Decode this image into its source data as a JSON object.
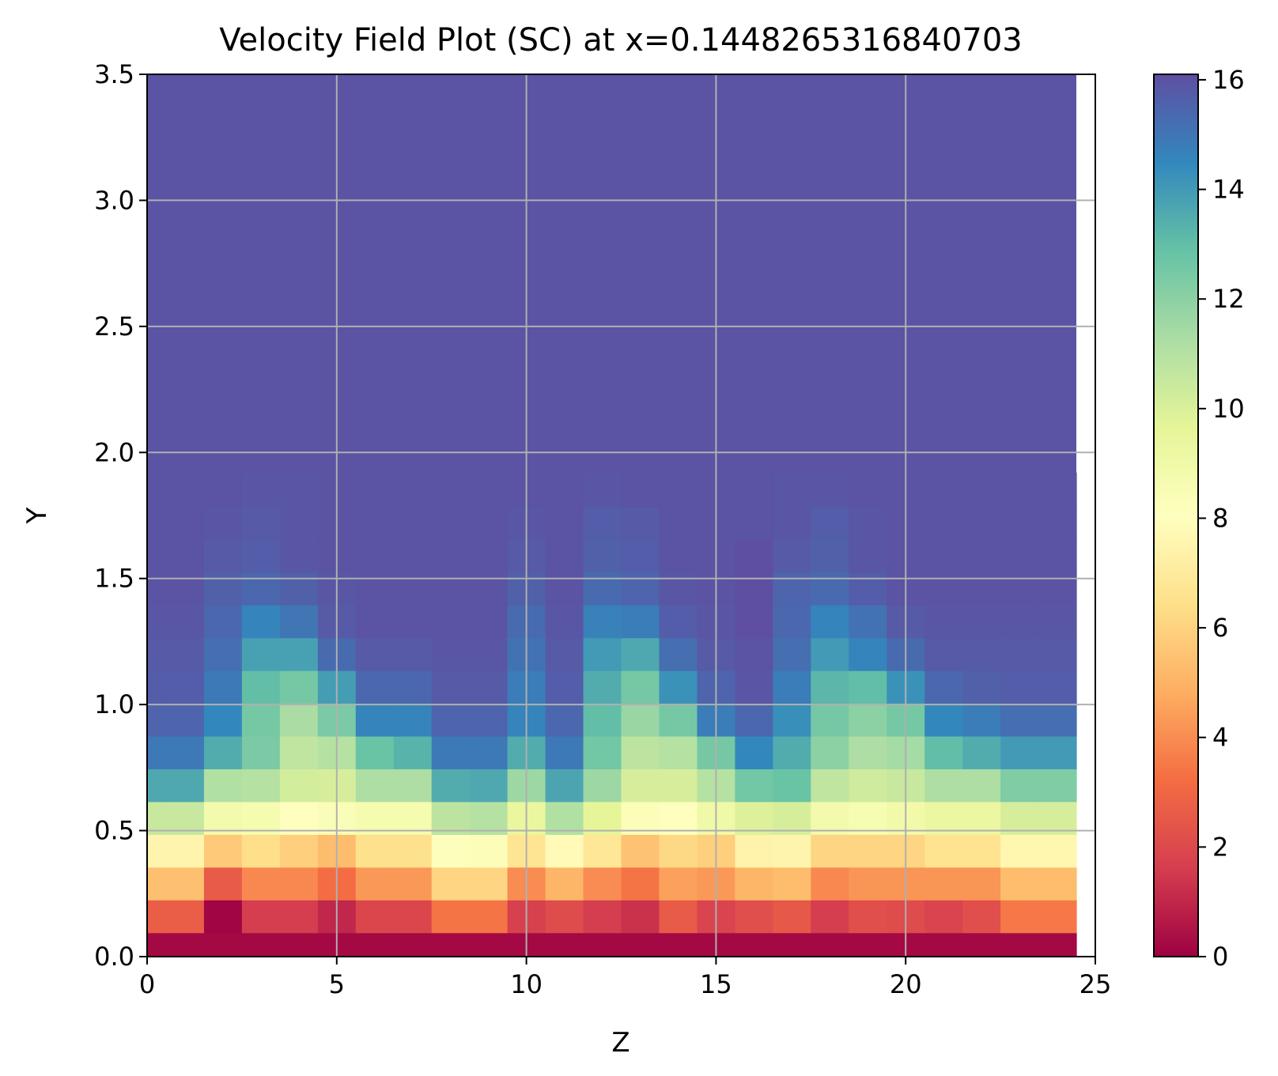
{
  "chart_data": {
    "type": "heatmap",
    "title": "Velocity Field Plot (SC) at x=0.1448265316840703",
    "xlabel": "Z",
    "ylabel": "Y",
    "xlim": [
      0,
      25
    ],
    "ylim": [
      0,
      3.5
    ],
    "x_ticks": [
      "0",
      "5",
      "10",
      "15",
      "20",
      "25"
    ],
    "y_ticks": [
      "0.0",
      "0.5",
      "1.0",
      "1.5",
      "2.0",
      "2.5",
      "3.0",
      "3.5"
    ],
    "colorbar": {
      "vmin": 0,
      "vmax": 16.1,
      "ticks": [
        "0",
        "2",
        "4",
        "6",
        "8",
        "10",
        "12",
        "14",
        "16"
      ],
      "colormap": "Spectral"
    },
    "grid": true,
    "cell_width": 1.0,
    "x_start": -0.5,
    "y_rows": [
      0.03,
      0.16,
      0.29,
      0.42,
      0.55,
      0.68,
      0.81,
      0.94,
      1.07,
      1.2,
      1.33,
      1.46,
      1.59,
      1.72,
      1.85
    ],
    "values": [
      [
        0.2,
        0.2,
        0.2,
        0.2,
        0.2,
        0.2,
        0.2,
        0.2,
        0.2,
        0.2,
        0.2,
        0.2,
        0.2,
        0.2,
        0.2,
        0.2,
        0.2,
        0.2,
        0.2,
        0.2,
        0.2,
        0.2,
        0.2,
        0.2,
        0.2
      ],
      [
        2.7,
        2.7,
        0.1,
        1.6,
        1.6,
        1.0,
        1.9,
        1.9,
        3.4,
        3.4,
        1.7,
        2.1,
        1.6,
        1.3,
        2.6,
        1.8,
        2.2,
        2.5,
        1.6,
        2.2,
        2.1,
        1.8,
        2.2,
        3.5,
        3.5
      ],
      [
        5.4,
        5.4,
        2.6,
        3.9,
        3.9,
        3.2,
        4.3,
        4.3,
        6.1,
        6.1,
        4.0,
        5.1,
        4.0,
        3.4,
        4.5,
        4.3,
        5.1,
        5.3,
        3.9,
        4.2,
        4.2,
        4.2,
        4.2,
        5.3,
        5.3
      ],
      [
        7.5,
        7.5,
        5.7,
        6.4,
        5.9,
        5.3,
        6.5,
        6.5,
        8.2,
        8.3,
        6.7,
        7.8,
        6.8,
        5.5,
        6.2,
        5.9,
        7.4,
        7.5,
        6.1,
        6.1,
        6.1,
        6.6,
        6.6,
        7.6,
        7.6
      ],
      [
        10.5,
        10.5,
        8.8,
        8.7,
        8.1,
        8.4,
        8.7,
        8.7,
        10.8,
        11.0,
        9.4,
        11.1,
        9.6,
        8.3,
        8.1,
        9.0,
        9.9,
        10.1,
        8.8,
        8.6,
        8.9,
        9.3,
        9.3,
        10.1,
        10.1
      ],
      [
        13.6,
        13.6,
        11.1,
        11.0,
        10.2,
        10.1,
        11.2,
        11.2,
        13.5,
        13.6,
        11.6,
        13.7,
        11.6,
        10.1,
        10.1,
        11.0,
        12.6,
        12.8,
        10.7,
        10.3,
        10.5,
        11.2,
        11.2,
        12.3,
        12.3
      ],
      [
        14.9,
        14.9,
        13.5,
        12.4,
        10.7,
        11.0,
        12.8,
        13.3,
        14.9,
        14.9,
        13.5,
        14.9,
        12.6,
        10.8,
        11.0,
        12.5,
        14.5,
        13.5,
        12.0,
        11.2,
        11.4,
        13.0,
        13.5,
        14.0,
        14.0
      ],
      [
        15.5,
        15.5,
        14.5,
        12.5,
        11.3,
        12.4,
        14.6,
        14.6,
        15.5,
        15.5,
        14.6,
        15.4,
        13.0,
        11.7,
        12.5,
        14.8,
        15.4,
        14.3,
        12.5,
        12.0,
        12.5,
        14.5,
        14.8,
        15.2,
        15.2
      ],
      [
        15.7,
        15.7,
        14.9,
        13.0,
        12.5,
        13.9,
        15.4,
        15.4,
        15.8,
        15.8,
        14.8,
        15.7,
        13.5,
        12.5,
        14.2,
        15.5,
        15.9,
        14.8,
        13.2,
        13.0,
        14.2,
        15.4,
        15.6,
        15.7,
        15.7
      ],
      [
        15.8,
        15.8,
        15.2,
        13.8,
        13.8,
        15.3,
        15.8,
        15.8,
        15.9,
        15.9,
        15.1,
        15.8,
        14.0,
        13.6,
        15.2,
        15.8,
        16.0,
        15.2,
        14.0,
        14.6,
        15.3,
        15.8,
        15.8,
        15.8,
        15.8
      ],
      [
        15.9,
        15.9,
        15.4,
        14.6,
        15.0,
        15.8,
        16.0,
        16.0,
        16.0,
        16.0,
        15.3,
        15.9,
        14.7,
        14.8,
        15.7,
        15.9,
        16.1,
        15.4,
        14.6,
        15.1,
        15.8,
        15.9,
        15.9,
        15.9,
        15.9
      ],
      [
        16.0,
        16.0,
        15.6,
        15.4,
        15.6,
        15.9,
        16.0,
        16.0,
        16.0,
        16.0,
        15.6,
        16.0,
        15.3,
        15.5,
        15.9,
        16.0,
        16.1,
        15.5,
        15.3,
        15.7,
        16.0,
        16.0,
        16.0,
        16.0,
        16.0
      ],
      [
        16.0,
        16.0,
        15.8,
        15.7,
        15.9,
        16.0,
        16.0,
        16.0,
        16.0,
        16.0,
        15.8,
        16.0,
        15.6,
        15.7,
        16.0,
        16.0,
        16.1,
        15.8,
        15.6,
        15.9,
        16.0,
        16.0,
        16.0,
        16.0,
        16.0
      ],
      [
        16.0,
        16.0,
        15.9,
        15.8,
        15.9,
        16.0,
        16.0,
        16.0,
        16.0,
        16.0,
        15.9,
        16.0,
        15.7,
        15.8,
        16.0,
        16.0,
        16.0,
        15.9,
        15.7,
        15.9,
        16.0,
        16.0,
        16.0,
        16.0,
        16.0
      ],
      [
        16.0,
        16.0,
        16.0,
        15.9,
        15.9,
        16.0,
        16.0,
        16.0,
        16.0,
        16.0,
        16.0,
        16.0,
        15.9,
        16.0,
        16.0,
        16.0,
        16.0,
        15.9,
        15.9,
        16.0,
        16.0,
        16.0,
        16.0,
        16.0,
        16.0
      ]
    ],
    "fill_value_above": 16.0,
    "fill_value_above_start": 1.92
  }
}
